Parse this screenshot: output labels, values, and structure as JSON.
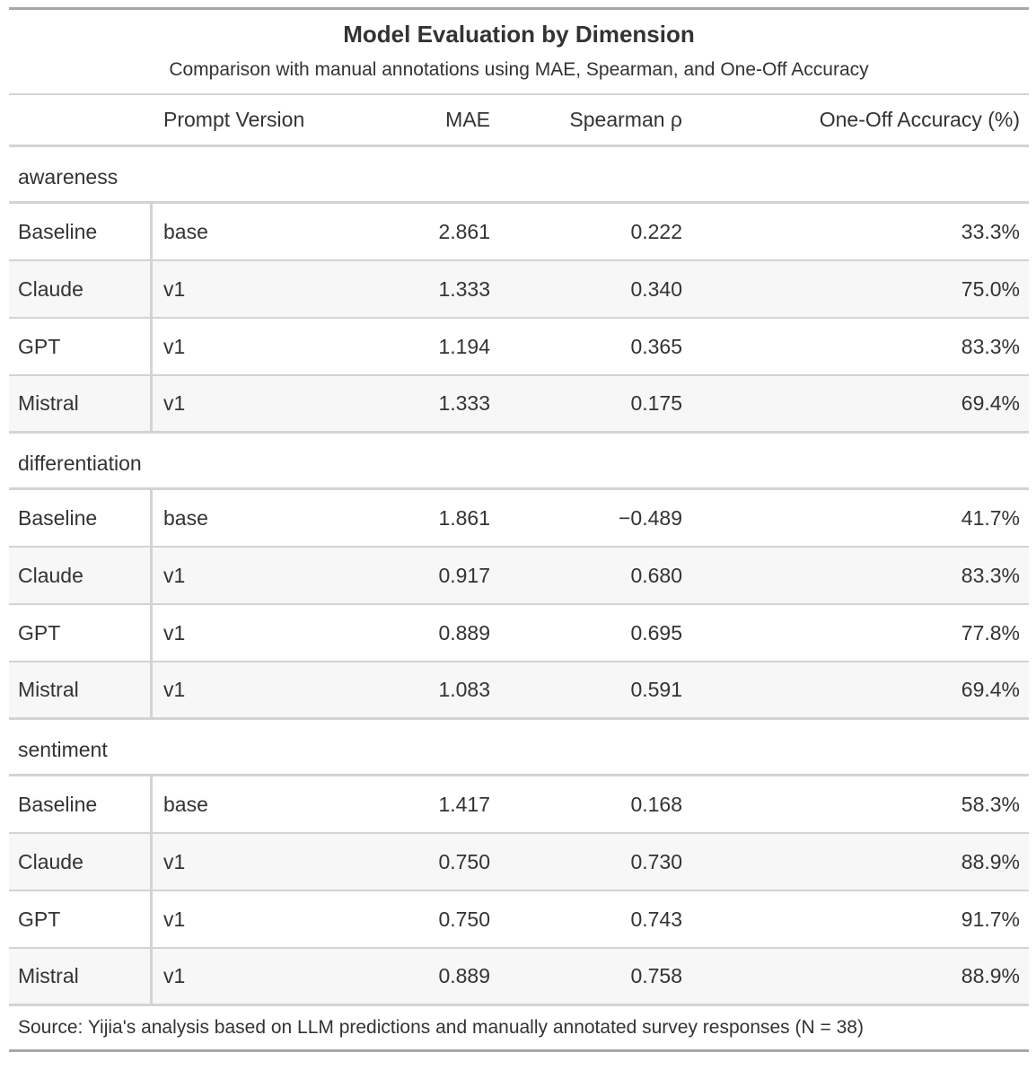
{
  "title": "Model Evaluation by Dimension",
  "subtitle": "Comparison with manual annotations using MAE, Spearman, and One-Off Accuracy",
  "columns": [
    "",
    "Prompt Version",
    "MAE",
    "Spearman ρ",
    "One-Off Accuracy (%)"
  ],
  "groups": [
    {
      "name": "awareness",
      "rows": [
        {
          "model": "Baseline",
          "prompt": "base",
          "mae": "2.861",
          "spearman": "0.222",
          "accuracy": "33.3%"
        },
        {
          "model": "Claude",
          "prompt": "v1",
          "mae": "1.333",
          "spearman": "0.340",
          "accuracy": "75.0%"
        },
        {
          "model": "GPT",
          "prompt": "v1",
          "mae": "1.194",
          "spearman": "0.365",
          "accuracy": "83.3%"
        },
        {
          "model": "Mistral",
          "prompt": "v1",
          "mae": "1.333",
          "spearman": "0.175",
          "accuracy": "69.4%"
        }
      ]
    },
    {
      "name": "differentiation",
      "rows": [
        {
          "model": "Baseline",
          "prompt": "base",
          "mae": "1.861",
          "spearman": "−0.489",
          "accuracy": "41.7%"
        },
        {
          "model": "Claude",
          "prompt": "v1",
          "mae": "0.917",
          "spearman": "0.680",
          "accuracy": "83.3%"
        },
        {
          "model": "GPT",
          "prompt": "v1",
          "mae": "0.889",
          "spearman": "0.695",
          "accuracy": "77.8%"
        },
        {
          "model": "Mistral",
          "prompt": "v1",
          "mae": "1.083",
          "spearman": "0.591",
          "accuracy": "69.4%"
        }
      ]
    },
    {
      "name": "sentiment",
      "rows": [
        {
          "model": "Baseline",
          "prompt": "base",
          "mae": "1.417",
          "spearman": "0.168",
          "accuracy": "58.3%"
        },
        {
          "model": "Claude",
          "prompt": "v1",
          "mae": "0.750",
          "spearman": "0.730",
          "accuracy": "88.9%"
        },
        {
          "model": "GPT",
          "prompt": "v1",
          "mae": "0.750",
          "spearman": "0.743",
          "accuracy": "91.7%"
        },
        {
          "model": "Mistral",
          "prompt": "v1",
          "mae": "0.889",
          "spearman": "0.758",
          "accuracy": "88.9%"
        }
      ]
    }
  ],
  "source": "Source: Yijia's analysis based on LLM predictions and manually annotated survey responses (N = 38)"
}
